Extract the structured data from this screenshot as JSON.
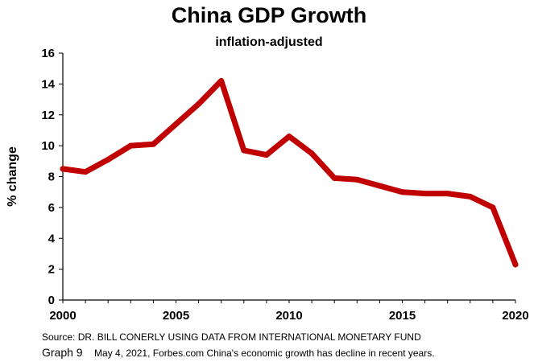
{
  "chart_data": {
    "type": "line",
    "title": "China GDP Growth",
    "subtitle": "inflation-adjusted",
    "ylabel": "% change",
    "xlabel": "",
    "x": [
      2000,
      2001,
      2002,
      2003,
      2004,
      2005,
      2006,
      2007,
      2008,
      2009,
      2010,
      2011,
      2012,
      2013,
      2014,
      2015,
      2016,
      2017,
      2018,
      2019,
      2020
    ],
    "series": [
      {
        "name": "",
        "color": "#c00000",
        "values": [
          8.5,
          8.3,
          9.1,
          10.0,
          10.1,
          11.4,
          12.7,
          14.2,
          9.7,
          9.4,
          10.6,
          9.5,
          7.9,
          7.8,
          7.4,
          7.0,
          6.9,
          6.9,
          6.7,
          6.0,
          2.3
        ]
      }
    ],
    "xlim": [
      2000,
      2020
    ],
    "ylim": [
      0,
      16
    ],
    "x_ticks": [
      2000,
      2005,
      2010,
      2015,
      2020
    ],
    "y_ticks": [
      0,
      2,
      4,
      6,
      8,
      10,
      12,
      14,
      16
    ],
    "grid": false,
    "legend": "none"
  },
  "footer": {
    "source": "Source: DR. BILL CONERLY USING DATA FROM INTERNATIONAL MONETARY FUND",
    "graph_label": "Graph 9",
    "note": "May 4, 2021, Forbes.com China's economic growth has decline in recent years."
  }
}
